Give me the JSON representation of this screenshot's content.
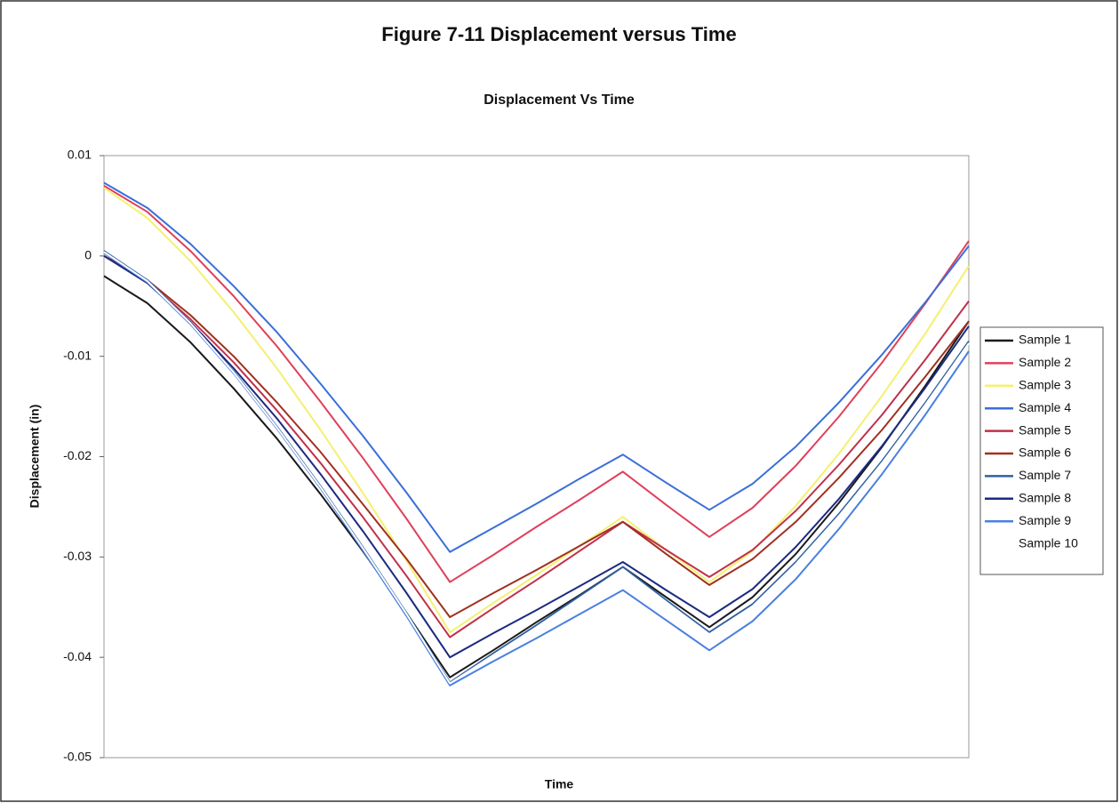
{
  "chart_data": {
    "type": "line",
    "title": "Figure 7-11 Displacement versus Time",
    "subtitle": "Displacement Vs Time",
    "x_label": "Time",
    "y_label": "Displacement (in)",
    "categories": [
      null,
      null,
      null,
      null,
      null,
      null,
      null,
      null,
      null,
      null,
      null,
      null,
      null,
      null,
      null,
      null,
      null,
      null,
      null,
      null,
      null
    ],
    "ylim": [
      -0.05,
      0.01
    ],
    "yticks": [
      0.01,
      0,
      -0.01,
      -0.02,
      -0.03,
      -0.04,
      -0.05
    ],
    "legend": "right",
    "series": [
      {
        "name": "Sample 1",
        "color": "#1a1a1a",
        "values": [
          -0.002,
          -0.0047,
          -0.0086,
          -0.0132,
          -0.0182,
          -0.0237,
          -0.0295,
          -0.0356,
          -0.042,
          -0.0393,
          -0.0365,
          -0.0338,
          -0.031,
          -0.034,
          -0.037,
          -0.034,
          -0.0297,
          -0.0246,
          -0.019,
          -0.0129,
          -0.0065
        ]
      },
      {
        "name": "Sample 2",
        "color": "#e0405a",
        "values": [
          0.007,
          0.0044,
          0.0005,
          -0.004,
          -0.009,
          -0.0145,
          -0.0202,
          -0.0262,
          -0.0325,
          -0.0298,
          -0.027,
          -0.0243,
          -0.0215,
          -0.0248,
          -0.028,
          -0.0251,
          -0.0209,
          -0.016,
          -0.0106,
          -0.0047,
          0.0015
        ]
      },
      {
        "name": "Sample 3",
        "color": "#f4f070",
        "values": [
          0.0068,
          0.0038,
          -0.0005,
          -0.0056,
          -0.0112,
          -0.0173,
          -0.0237,
          -0.0304,
          -0.0375,
          -0.0346,
          -0.0318,
          -0.0289,
          -0.026,
          -0.0293,
          -0.0325,
          -0.0294,
          -0.0249,
          -0.0197,
          -0.0139,
          -0.0077,
          -0.001
        ]
      },
      {
        "name": "Sample 4",
        "color": "#3a6fd8",
        "values": [
          0.0073,
          0.0048,
          0.0012,
          -0.003,
          -0.0076,
          -0.0127,
          -0.018,
          -0.0236,
          -0.0295,
          -0.0271,
          -0.0247,
          -0.0222,
          -0.0198,
          -0.0226,
          -0.0253,
          -0.0227,
          -0.019,
          -0.0146,
          -0.0098,
          -0.0046,
          0.001
        ]
      },
      {
        "name": "Sample 5",
        "color": "#c0304a",
        "values": [
          0,
          -0.0025,
          -0.0063,
          -0.0106,
          -0.0154,
          -0.0206,
          -0.0261,
          -0.0319,
          -0.038,
          -0.0351,
          -0.0323,
          -0.0294,
          -0.0265,
          -0.0293,
          -0.032,
          -0.0293,
          -0.0254,
          -0.0208,
          -0.0158,
          -0.0103,
          -0.0045
        ]
      },
      {
        "name": "Sample 6",
        "color": "#a03020",
        "values": [
          0,
          -0.0024,
          -0.0059,
          -0.01,
          -0.0146,
          -0.0195,
          -0.0248,
          -0.0302,
          -0.036,
          -0.0336,
          -0.0313,
          -0.0289,
          -0.0265,
          -0.0297,
          -0.0328,
          -0.0302,
          -0.0265,
          -0.0221,
          -0.0173,
          -0.012,
          -0.0065
        ]
      },
      {
        "name": "Sample 7",
        "color": "#3060a0",
        "values": [
          0.0005,
          -0.0024,
          -0.0066,
          -0.0115,
          -0.017,
          -0.0229,
          -0.0291,
          -0.0356,
          -0.0425,
          -0.0396,
          -0.0368,
          -0.0339,
          -0.031,
          -0.0343,
          -0.0375,
          -0.0347,
          -0.0305,
          -0.0257,
          -0.0204,
          -0.0146,
          -0.0085
        ]
      },
      {
        "name": "Sample 8",
        "color": "#1c2a80",
        "values": [
          0,
          -0.0027,
          -0.0066,
          -0.0112,
          -0.0162,
          -0.0217,
          -0.0275,
          -0.0336,
          -0.04,
          -0.0376,
          -0.0353,
          -0.0329,
          -0.0305,
          -0.0333,
          -0.036,
          -0.0332,
          -0.029,
          -0.0242,
          -0.0189,
          -0.0131,
          -0.007
        ]
      },
      {
        "name": "Sample 9",
        "color": "#4a80e0",
        "values": [
          0.0003,
          -0.0026,
          -0.0068,
          -0.0117,
          -0.0172,
          -0.0231,
          -0.0294,
          -0.0359,
          -0.0428,
          -0.0404,
          -0.0381,
          -0.0357,
          -0.0333,
          -0.0363,
          -0.0393,
          -0.0364,
          -0.0322,
          -0.0272,
          -0.0217,
          -0.0158,
          -0.0095
        ]
      },
      {
        "name": "Sample 10",
        "color": "#ffffff",
        "values": [
          0.0004,
          -0.0025,
          -0.0067,
          -0.0116,
          -0.0171,
          -0.023,
          -0.0292,
          -0.0357,
          -0.0426,
          -0.0398,
          -0.037,
          -0.0341,
          -0.0312,
          -0.0345,
          -0.0377,
          -0.0349,
          -0.0307,
          -0.0259,
          -0.0206,
          -0.0148,
          -0.0087
        ]
      }
    ]
  }
}
